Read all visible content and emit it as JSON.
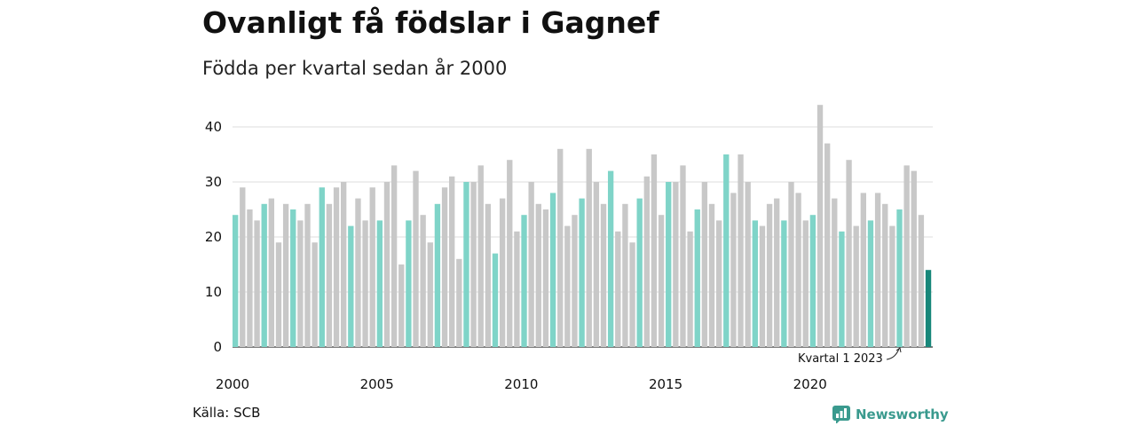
{
  "header": {
    "title": "Ovanligt få födslar i Gagnef",
    "subtitle": "Födda per kvartal sedan år 2000"
  },
  "footer": {
    "source": "Källa: SCB",
    "brand": "Newsworthy"
  },
  "colors": {
    "q1_highlight": "#7fd4c8",
    "other_quarters": "#c8c8c8",
    "latest": "#17877a",
    "gridline": "#dddddd",
    "brand": "#3a9a8e"
  },
  "chart_data": {
    "type": "bar",
    "title": "Ovanligt få födslar i Gagnef",
    "subtitle": "Födda per kvartal sedan år 2000",
    "ylim": [
      0,
      45
    ],
    "yticks": [
      0,
      10,
      20,
      30,
      40
    ],
    "xtick_labels": [
      "2000",
      "2005",
      "2010",
      "2015",
      "2020"
    ],
    "grid": true,
    "start_year": 2000,
    "annotation": {
      "text": "Kvartal 1 2023",
      "target_quarter": "2023 K1"
    },
    "series": [
      {
        "values": [
          24,
          29,
          25,
          23,
          26,
          27,
          19,
          26,
          25,
          23,
          26,
          19,
          29,
          26,
          29,
          30,
          22,
          27,
          23,
          29,
          23,
          30,
          33,
          15,
          23,
          32,
          24,
          19,
          26,
          29,
          31,
          16,
          30,
          30,
          33,
          26,
          17,
          27,
          34,
          21,
          24,
          30,
          26,
          25,
          28,
          36,
          22,
          24,
          27,
          36,
          30,
          26,
          32,
          21,
          26,
          19,
          27,
          31,
          35,
          24,
          30,
          30,
          33,
          21,
          25,
          30,
          26,
          23,
          35,
          28,
          35,
          30,
          23,
          22,
          26,
          27,
          23,
          30,
          28,
          23,
          24,
          44,
          37,
          27,
          21,
          34,
          22,
          28,
          23,
          28,
          26,
          22,
          25,
          33,
          32,
          24,
          14
        ]
      }
    ]
  }
}
